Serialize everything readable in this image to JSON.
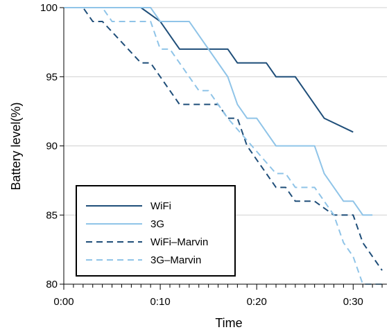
{
  "chart_data": {
    "type": "line",
    "title": "",
    "xlabel": "Time",
    "ylabel": "Battery level(%)",
    "xlim": [
      0,
      33.5
    ],
    "ylim": [
      80,
      100
    ],
    "x_ticks": [
      {
        "value": 0,
        "label": "0:00"
      },
      {
        "value": 10,
        "label": "0:10"
      },
      {
        "value": 20,
        "label": "0:20"
      },
      {
        "value": 30,
        "label": "0:30"
      }
    ],
    "y_ticks": [
      {
        "value": 80,
        "label": "80"
      },
      {
        "value": 85,
        "label": "85"
      },
      {
        "value": 90,
        "label": "90"
      },
      {
        "value": 95,
        "label": "95"
      },
      {
        "value": 100,
        "label": "100"
      }
    ],
    "grid": "horizontal",
    "legend_position": "bottom-left",
    "series": [
      {
        "name": "WiFi",
        "color": "#1f4e79",
        "dash": "solid",
        "x": [
          0,
          8,
          10,
          12,
          17,
          18,
          21,
          22,
          24,
          27,
          30
        ],
        "y": [
          100,
          100,
          99,
          97,
          97,
          96,
          96,
          95,
          95,
          92,
          91
        ]
      },
      {
        "name": "3G",
        "color": "#8fc4e8",
        "dash": "solid",
        "x": [
          0,
          9,
          10,
          13,
          17,
          18,
          19,
          20,
          22,
          26,
          27,
          29,
          30,
          31,
          32
        ],
        "y": [
          100,
          100,
          99,
          99,
          95,
          93,
          92,
          92,
          90,
          90,
          88,
          86,
          86,
          85,
          85
        ]
      },
      {
        "name": "WiFi–Marvin",
        "color": "#1f4e79",
        "dash": "dashed",
        "x": [
          0,
          2,
          3,
          4,
          8,
          9,
          12,
          16,
          17,
          18,
          19,
          22,
          23,
          24,
          26,
          28,
          30,
          31,
          33
        ],
        "y": [
          100,
          100,
          99,
          99,
          96,
          96,
          93,
          93,
          92,
          92,
          90,
          87,
          87,
          86,
          86,
          85,
          85,
          83,
          81
        ]
      },
      {
        "name": "3G–Marvin",
        "color": "#8fc4e8",
        "dash": "dashed",
        "x": [
          0,
          4,
          5,
          8,
          9,
          10,
          11,
          14,
          15,
          16,
          17,
          22,
          23,
          24,
          26,
          28,
          29,
          30,
          31,
          32,
          33
        ],
        "y": [
          100,
          100,
          99,
          99,
          99,
          97,
          97,
          94,
          94,
          93,
          92,
          88,
          88,
          87,
          87,
          85,
          83,
          82,
          80,
          80,
          80
        ]
      }
    ]
  }
}
